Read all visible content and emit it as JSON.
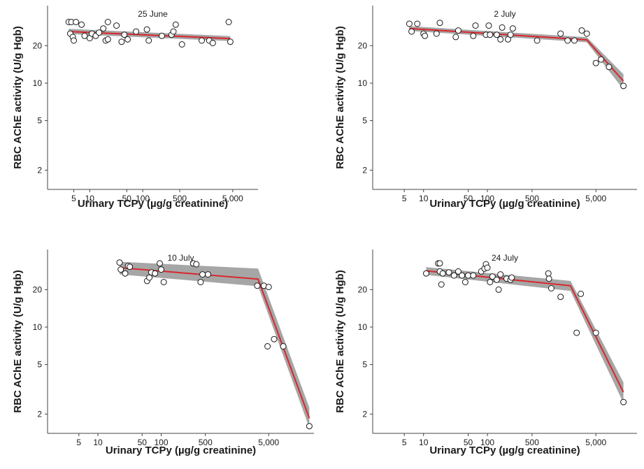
{
  "colors": {
    "fit_line": "#d9262c",
    "ci_band": "#a6a6a6",
    "point_fill": "#ffffff",
    "point_stroke": "#1a1a1a",
    "axis": "#444444",
    "text": "#1a1a1a"
  },
  "chart_data": [
    {
      "type": "scatter",
      "title": "25 June",
      "xlabel": "Urinary TCPy (µg/g creatinine)",
      "ylabel": "RBC AChE activity (U/g Hgb)",
      "xscale": "log",
      "yscale": "log",
      "xlim": [
        1.6,
        15000
      ],
      "ylim": [
        1.4,
        42
      ],
      "xticks": [
        5,
        10,
        50,
        100,
        500,
        5000
      ],
      "xtick_labels": [
        "5",
        "10",
        "50",
        "100",
        "500",
        "5,000"
      ],
      "yticks": [
        2,
        5,
        10,
        20
      ],
      "ytick_labels": [
        "2",
        "5",
        "10",
        "20"
      ],
      "grid": false,
      "points": [
        [
          4,
          31
        ],
        [
          4.5,
          31
        ],
        [
          5.5,
          31
        ],
        [
          4.3,
          25
        ],
        [
          4.8,
          23.5
        ],
        [
          5,
          22
        ],
        [
          7,
          29.5
        ],
        [
          8,
          24
        ],
        [
          10,
          23
        ],
        [
          11,
          25
        ],
        [
          13,
          24
        ],
        [
          15,
          25.5
        ],
        [
          18,
          27.5
        ],
        [
          20,
          22
        ],
        [
          22,
          31
        ],
        [
          22,
          22.5
        ],
        [
          32,
          29
        ],
        [
          40,
          21.5
        ],
        [
          45,
          24.5
        ],
        [
          52,
          22.5
        ],
        [
          75,
          26
        ],
        [
          120,
          27
        ],
        [
          130,
          22
        ],
        [
          230,
          24
        ],
        [
          350,
          24.5
        ],
        [
          380,
          26
        ],
        [
          420,
          29.5
        ],
        [
          550,
          20.5
        ],
        [
          1300,
          22
        ],
        [
          1800,
          22
        ],
        [
          2100,
          21
        ],
        [
          4200,
          31
        ],
        [
          4500,
          21.5
        ]
      ],
      "fit_line": [
        [
          4,
          26
        ],
        [
          4500,
          22.8
        ]
      ],
      "ci_band": {
        "x": [
          4,
          4500
        ],
        "lower": [
          24.8,
          21.8
        ],
        "upper": [
          27.3,
          23.9
        ]
      }
    },
    {
      "type": "scatter",
      "title": "2 July",
      "xlabel": "Urinary TCPy (µg/g creatinine)",
      "ylabel": "RBC AChE activity (U/g Hgb)",
      "xscale": "log",
      "yscale": "log",
      "xlim": [
        1.6,
        22000
      ],
      "ylim": [
        1.4,
        42
      ],
      "xticks": [
        5,
        10,
        50,
        100,
        500,
        5000
      ],
      "xtick_labels": [
        "5",
        "10",
        "50",
        "100",
        "500",
        "5,000"
      ],
      "yticks": [
        2,
        5,
        10,
        20
      ],
      "ytick_labels": [
        "2",
        "5",
        "10",
        "20"
      ],
      "grid": false,
      "points": [
        [
          6,
          30
        ],
        [
          6.5,
          26
        ],
        [
          8,
          30
        ],
        [
          10,
          25
        ],
        [
          10.5,
          24
        ],
        [
          16,
          25
        ],
        [
          18,
          30.5
        ],
        [
          32,
          23.5
        ],
        [
          35,
          26.5
        ],
        [
          60,
          24
        ],
        [
          65,
          29
        ],
        [
          95,
          24.5
        ],
        [
          105,
          29
        ],
        [
          110,
          24.5
        ],
        [
          140,
          24.5
        ],
        [
          160,
          22.5
        ],
        [
          170,
          28
        ],
        [
          210,
          22.5
        ],
        [
          230,
          24.5
        ],
        [
          250,
          27.5
        ],
        [
          600,
          22
        ],
        [
          1400,
          25
        ],
        [
          1800,
          22
        ],
        [
          2300,
          22
        ],
        [
          3000,
          26.5
        ],
        [
          3600,
          25
        ],
        [
          5000,
          14.5
        ],
        [
          6000,
          15.5
        ],
        [
          8000,
          13.5
        ],
        [
          13500,
          9.5
        ]
      ],
      "fit_line": [
        [
          6,
          27.5
        ],
        [
          3600,
          22.3
        ],
        [
          13500,
          10.4
        ]
      ],
      "ci_band": {
        "x": [
          6,
          3600,
          13500
        ],
        "lower": [
          26.3,
          21.3,
          8.9
        ],
        "upper": [
          28.7,
          23.4,
          11.8
        ]
      }
    },
    {
      "type": "scatter",
      "title": "10 July",
      "xlabel": "Urinary TCPy (µg/g creatinine)",
      "ylabel": "RBC AChE activity (U/g Hgb)",
      "xscale": "log",
      "yscale": "log",
      "xlim": [
        1.6,
        26000
      ],
      "ylim": [
        1.4,
        42
      ],
      "xticks": [
        5,
        10,
        50,
        100,
        500,
        5000
      ],
      "xtick_labels": [
        "5",
        "10",
        "50",
        "100",
        "500",
        "5,000"
      ],
      "yticks": [
        2,
        5,
        10,
        20
      ],
      "ytick_labels": [
        "2",
        "5",
        "10",
        "20"
      ],
      "grid": false,
      "points": [
        [
          22,
          33
        ],
        [
          23,
          29
        ],
        [
          27,
          27
        ],
        [
          30,
          31
        ],
        [
          32,
          30.5
        ],
        [
          60,
          23.5
        ],
        [
          65,
          25
        ],
        [
          70,
          27.5
        ],
        [
          80,
          27
        ],
        [
          95,
          32.5
        ],
        [
          100,
          29
        ],
        [
          110,
          23
        ],
        [
          320,
          32.5
        ],
        [
          360,
          32
        ],
        [
          420,
          23
        ],
        [
          450,
          26.5
        ],
        [
          550,
          26.5
        ],
        [
          3300,
          21.5
        ],
        [
          4200,
          21.5
        ],
        [
          4800,
          7
        ],
        [
          5000,
          21
        ],
        [
          6100,
          8
        ],
        [
          8500,
          7
        ],
        [
          22000,
          1.6
        ]
      ],
      "fit_line": [
        [
          22,
          30
        ],
        [
          3400,
          24.3
        ],
        [
          22000,
          1.85
        ]
      ],
      "ci_band": {
        "x": [
          22,
          3400,
          22000
        ],
        "lower": [
          26.5,
          21.3,
          1.55
        ],
        "upper": [
          33.5,
          29.5,
          2.25
        ]
      }
    },
    {
      "type": "scatter",
      "title": "24 July",
      "xlabel": "Urinary TCPy (µg/g creatinine)",
      "ylabel": "RBC AChE activity (U/g Hgb)",
      "xscale": "log",
      "yscale": "log",
      "xlim": [
        1.6,
        22000
      ],
      "ylim": [
        1.4,
        42
      ],
      "xticks": [
        5,
        10,
        50,
        100,
        500,
        5000
      ],
      "xtick_labels": [
        "5",
        "10",
        "50",
        "100",
        "500",
        "5,000"
      ],
      "yticks": [
        2,
        5,
        10,
        20
      ],
      "ytick_labels": [
        "2",
        "5",
        "10",
        "20"
      ],
      "grid": false,
      "points": [
        [
          11,
          27
        ],
        [
          17,
          32.5
        ],
        [
          18,
          32.5
        ],
        [
          18,
          28
        ],
        [
          19,
          22
        ],
        [
          20,
          27
        ],
        [
          25,
          27.5
        ],
        [
          30,
          26
        ],
        [
          35,
          28
        ],
        [
          40,
          26
        ],
        [
          45,
          23
        ],
        [
          50,
          26
        ],
        [
          60,
          26
        ],
        [
          80,
          28
        ],
        [
          90,
          29.5
        ],
        [
          95,
          32
        ],
        [
          100,
          30
        ],
        [
          110,
          23
        ],
        [
          120,
          25.5
        ],
        [
          140,
          24
        ],
        [
          150,
          20
        ],
        [
          160,
          26.5
        ],
        [
          200,
          24.5
        ],
        [
          230,
          24
        ],
        [
          240,
          25
        ],
        [
          900,
          27
        ],
        [
          920,
          24.5
        ],
        [
          1000,
          20.5
        ],
        [
          1400,
          17.5
        ],
        [
          2500,
          9
        ],
        [
          2900,
          18.5
        ],
        [
          5000,
          9
        ],
        [
          13500,
          2.5
        ]
      ],
      "fit_line": [
        [
          11,
          28.3
        ],
        [
          2000,
          21.5
        ],
        [
          13500,
          3.0
        ]
      ],
      "ci_band": {
        "x": [
          11,
          2000,
          13500
        ],
        "lower": [
          26.3,
          19.5,
          2.45
        ],
        "upper": [
          30.3,
          23.5,
          3.6
        ]
      }
    }
  ]
}
